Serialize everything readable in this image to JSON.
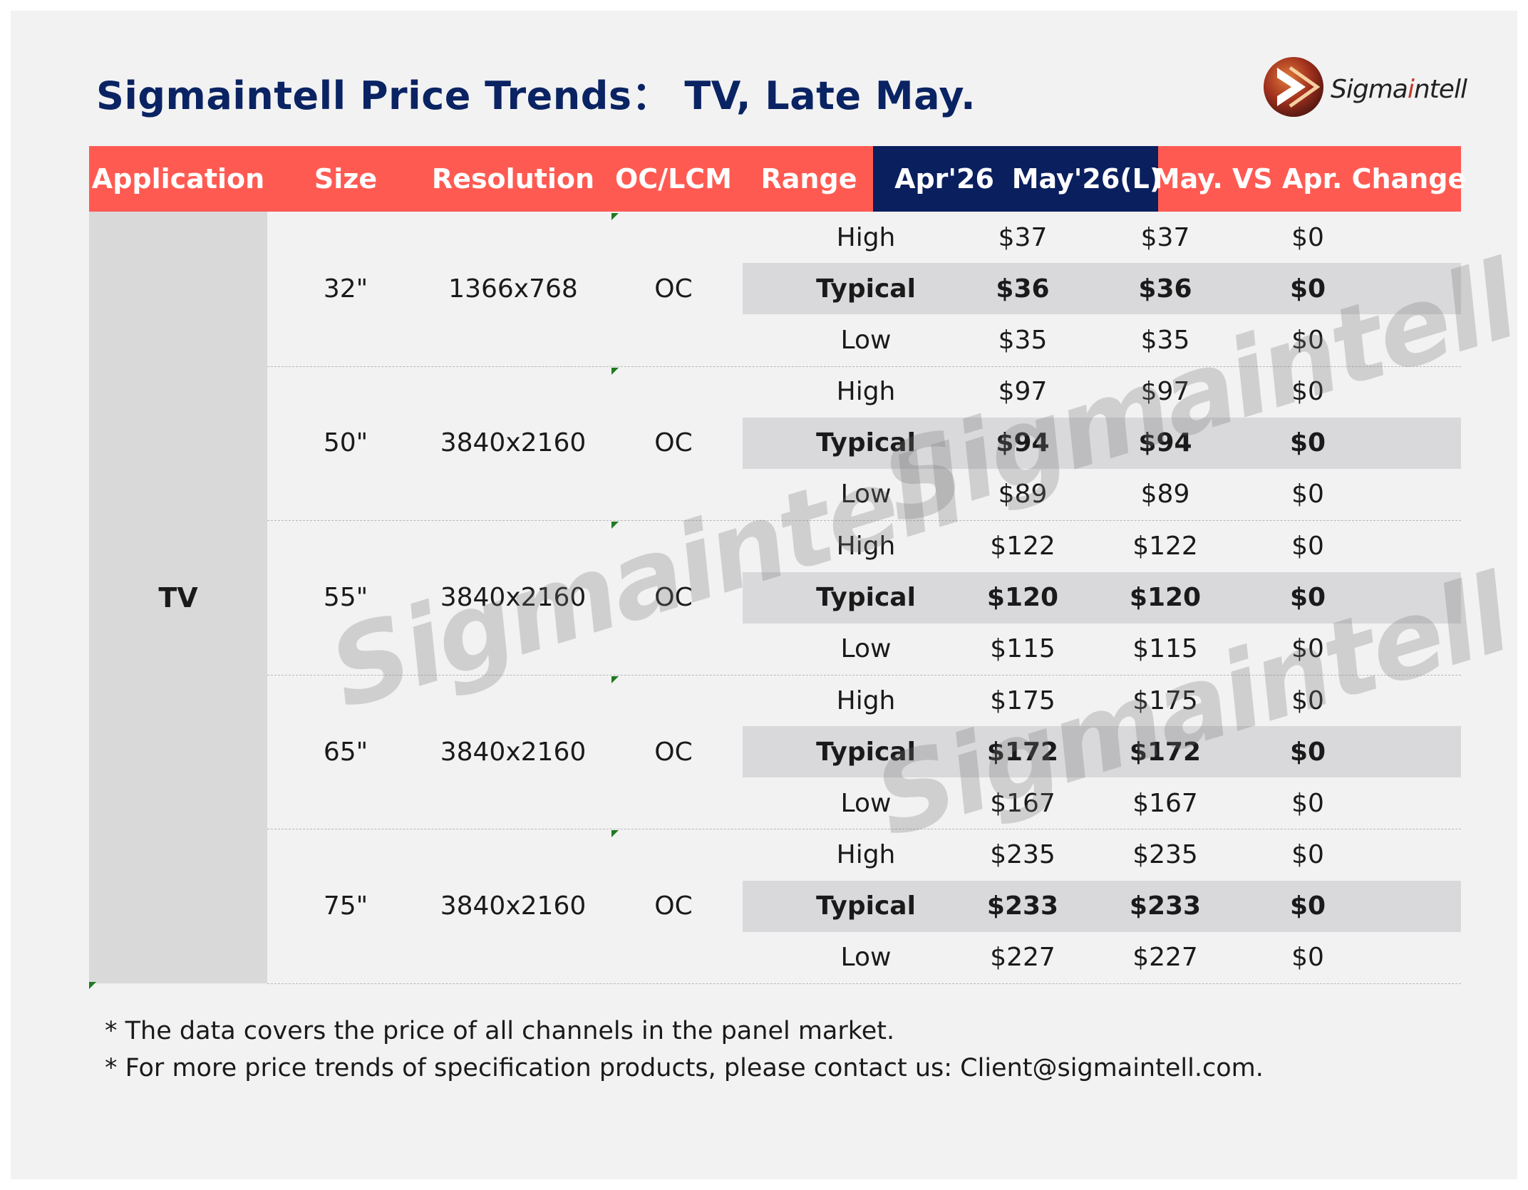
{
  "title": "Sigmaintell Price Trends：  TV, Late May.",
  "logo": {
    "text_a": "Sigma",
    "text_i": "i",
    "text_b": "ntell"
  },
  "headers": [
    "Application",
    "Size",
    "Resolution",
    "OC/LCM",
    "Range",
    "Apr'26",
    "May'26(L)",
    "May. VS Apr. Change"
  ],
  "application": "TV",
  "groups": [
    {
      "size": "32\"",
      "resolution": "1366x768",
      "oc": "OC",
      "rows": [
        {
          "range": "High",
          "apr": "$37",
          "may": "$37",
          "change": "$0"
        },
        {
          "range": "Typical",
          "apr": "$36",
          "may": "$36",
          "change": "$0"
        },
        {
          "range": "Low",
          "apr": "$35",
          "may": "$35",
          "change": "$0"
        }
      ]
    },
    {
      "size": "50\"",
      "resolution": "3840x2160",
      "oc": "OC",
      "rows": [
        {
          "range": "High",
          "apr": "$97",
          "may": "$97",
          "change": "$0"
        },
        {
          "range": "Typical",
          "apr": "$94",
          "may": "$94",
          "change": "$0"
        },
        {
          "range": "Low",
          "apr": "$89",
          "may": "$89",
          "change": "$0"
        }
      ]
    },
    {
      "size": "55\"",
      "resolution": "3840x2160",
      "oc": "OC",
      "rows": [
        {
          "range": "High",
          "apr": "$122",
          "may": "$122",
          "change": "$0"
        },
        {
          "range": "Typical",
          "apr": "$120",
          "may": "$120",
          "change": "$0"
        },
        {
          "range": "Low",
          "apr": "$115",
          "may": "$115",
          "change": "$0"
        }
      ]
    },
    {
      "size": "65\"",
      "resolution": "3840x2160",
      "oc": "OC",
      "rows": [
        {
          "range": "High",
          "apr": "$175",
          "may": "$175",
          "change": "$0"
        },
        {
          "range": "Typical",
          "apr": "$172",
          "may": "$172",
          "change": "$0"
        },
        {
          "range": "Low",
          "apr": "$167",
          "may": "$167",
          "change": "$0"
        }
      ]
    },
    {
      "size": "75\"",
      "resolution": "3840x2160",
      "oc": "OC",
      "rows": [
        {
          "range": "High",
          "apr": "$235",
          "may": "$235",
          "change": "$0"
        },
        {
          "range": "Typical",
          "apr": "$233",
          "may": "$233",
          "change": "$0"
        },
        {
          "range": "Low",
          "apr": "$227",
          "may": "$227",
          "change": "$0"
        }
      ]
    }
  ],
  "notes": [
    "* The data covers the price of all channels in the panel market.",
    "* For more price trends of specification products, please contact us: Client@sigmaintell.com."
  ],
  "watermark": "Sigmaintell",
  "colors": {
    "header_red": "#ff5a52",
    "header_navy": "#0a1f5e",
    "title_navy": "#0a2363",
    "app_gray": "#d9d9d9",
    "typical_band": "#d9d9dc"
  }
}
